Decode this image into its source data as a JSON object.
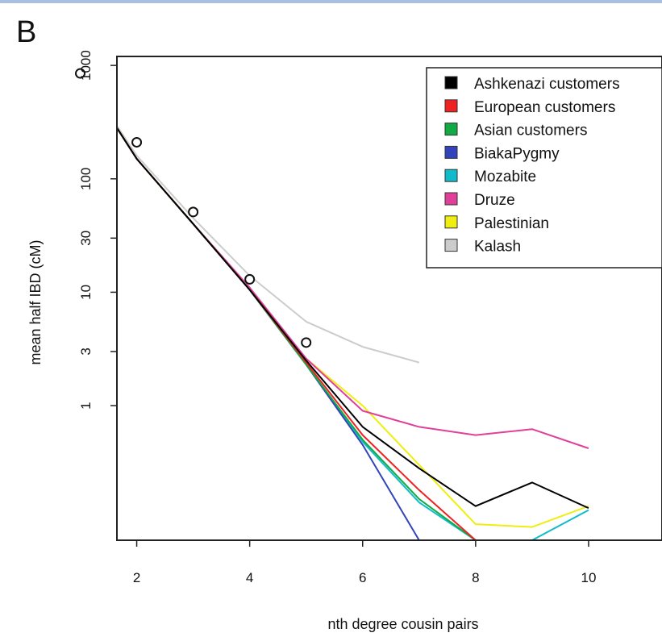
{
  "panel_label": "B",
  "chart_data": {
    "type": "line",
    "title": "",
    "xlabel": "nth degree cousin pairs",
    "ylabel": "mean half IBD (cM)",
    "y_scale": "log",
    "xlim": [
      0.6,
      10.3
    ],
    "ylim": [
      0.065,
      1200
    ],
    "x_ticks": [
      2,
      4,
      6,
      8,
      10
    ],
    "y_ticks": [
      1000,
      100,
      30,
      10,
      3,
      1
    ],
    "legend_position": "top-right",
    "grid": false,
    "series": [
      {
        "name": "Ashkenazi customers",
        "color": "#000000",
        "x": [
          1,
          2,
          3,
          4,
          5,
          6,
          7,
          8,
          9,
          10
        ],
        "y": [
          900,
          150,
          40,
          10.5,
          2.5,
          0.65,
          0.28,
          0.13,
          0.21,
          0.125
        ]
      },
      {
        "name": "European customers",
        "color": "#ee2222",
        "x": [
          1,
          2,
          3,
          4,
          5,
          6,
          7,
          8
        ],
        "y": [
          900,
          150,
          40,
          10.5,
          2.4,
          0.55,
          0.18,
          0.065
        ]
      },
      {
        "name": "Asian customers",
        "color": "#11aa44",
        "x": [
          1,
          2,
          3,
          4,
          5,
          6,
          7,
          8
        ],
        "y": [
          900,
          150,
          40,
          10.5,
          2.3,
          0.5,
          0.15,
          0.065
        ]
      },
      {
        "name": "BiakaPygmy",
        "color": "#3344bb",
        "x": [
          1,
          2,
          3,
          4,
          5,
          6,
          7,
          8
        ],
        "y": [
          900,
          150,
          40,
          10.5,
          2.3,
          0.45,
          0.065,
          0.065
        ]
      },
      {
        "name": "Mozabite",
        "color": "#11bbcc",
        "x": [
          1,
          2,
          3,
          4,
          5,
          6,
          7,
          8,
          9,
          10
        ],
        "y": [
          900,
          150,
          40,
          10.5,
          2.3,
          0.48,
          0.14,
          0.065,
          0.065,
          0.12
        ]
      },
      {
        "name": "Druze",
        "color": "#e0409a",
        "x": [
          1,
          2,
          3,
          4,
          5,
          6,
          7,
          8,
          9,
          10
        ],
        "y": [
          900,
          150,
          40,
          11,
          2.6,
          0.9,
          0.65,
          0.55,
          0.62,
          0.42
        ]
      },
      {
        "name": "Palestinian",
        "color": "#eeee11",
        "x": [
          1,
          2,
          3,
          4,
          5,
          6,
          7,
          8,
          9,
          10
        ],
        "y": [
          900,
          150,
          40,
          10.5,
          2.6,
          1.0,
          0.3,
          0.09,
          0.085,
          0.13
        ]
      },
      {
        "name": "Kalash",
        "color": "#cccccc",
        "x": [
          1,
          2,
          3,
          4,
          5,
          6,
          7
        ],
        "y": [
          900,
          160,
          45,
          14,
          5.5,
          3.3,
          2.4
        ]
      }
    ],
    "expected_points": {
      "x": [
        1,
        2,
        3,
        4,
        5
      ],
      "y": [
        850,
        210,
        51,
        13,
        3.6
      ]
    }
  }
}
